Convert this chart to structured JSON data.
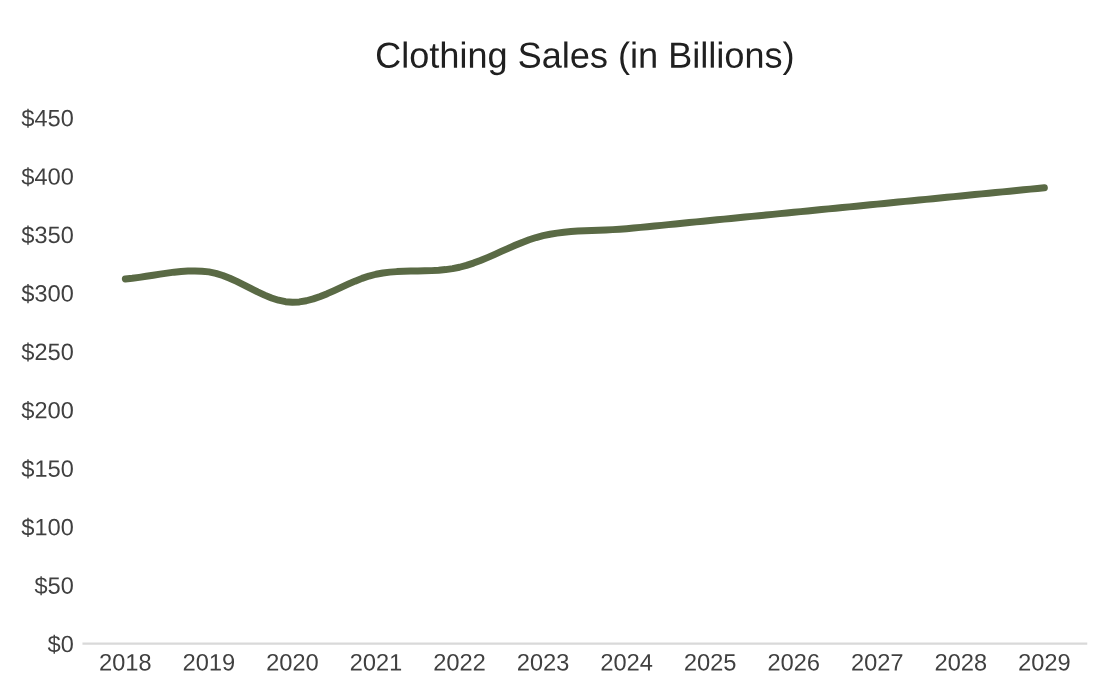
{
  "chart_data": {
    "type": "line",
    "title": "Clothing Sales (in Billions)",
    "categories": [
      "2018",
      "2019",
      "2020",
      "2021",
      "2022",
      "2023",
      "2024",
      "2025",
      "2026",
      "2027",
      "2028",
      "2029"
    ],
    "series": [
      {
        "color": "#5a6a45",
        "values": [
          312,
          318,
          292,
          316,
          322,
          349,
          355,
          362,
          369,
          376,
          383,
          390
        ]
      }
    ],
    "ylim": [
      0,
      450
    ],
    "yticks": [
      {
        "value": 0,
        "label": "$0"
      },
      {
        "value": 50,
        "label": "$50"
      },
      {
        "value": 100,
        "label": "$100"
      },
      {
        "value": 150,
        "label": "$150"
      },
      {
        "value": 200,
        "label": "$200"
      },
      {
        "value": 250,
        "label": "$250"
      },
      {
        "value": 300,
        "label": "$300"
      },
      {
        "value": 350,
        "label": "$350"
      },
      {
        "value": 400,
        "label": "$400"
      },
      {
        "value": 450,
        "label": "$450"
      }
    ],
    "grid": false,
    "marker": "none",
    "line_style": "solid"
  }
}
